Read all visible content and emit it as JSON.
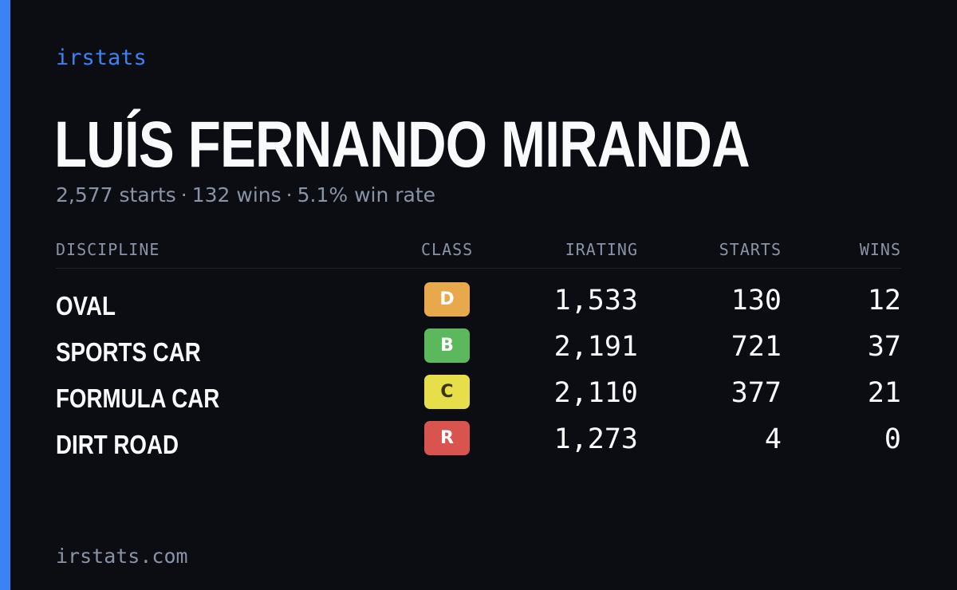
{
  "brand": "irstats",
  "accent_color": "#3b82f6",
  "player": {
    "name": "LUÍS FERNANDO MIRANDA",
    "starts_text": "2,577 starts",
    "separator": "·",
    "wins_text": "132 wins",
    "win_rate_text": "5.1% win rate"
  },
  "table": {
    "headers": {
      "discipline": "DISCIPLINE",
      "class": "CLASS",
      "irating": "IRATING",
      "starts": "STARTS",
      "wins": "WINS"
    },
    "rows": [
      {
        "discipline": "OVAL",
        "class": "D",
        "class_color": "#e8a84c",
        "irating": "1,533",
        "starts": "130",
        "wins": "12"
      },
      {
        "discipline": "SPORTS CAR",
        "class": "B",
        "class_color": "#5cb85c",
        "irating": "2,191",
        "starts": "721",
        "wins": "37"
      },
      {
        "discipline": "FORMULA CAR",
        "class": "C",
        "class_color": "#e6df4a",
        "irating": "2,110",
        "starts": "377",
        "wins": "21"
      },
      {
        "discipline": "DIRT ROAD",
        "class": "R",
        "class_color": "#d9534f",
        "irating": "1,273",
        "starts": "4",
        "wins": "0"
      }
    ]
  },
  "footer": "irstats.com"
}
